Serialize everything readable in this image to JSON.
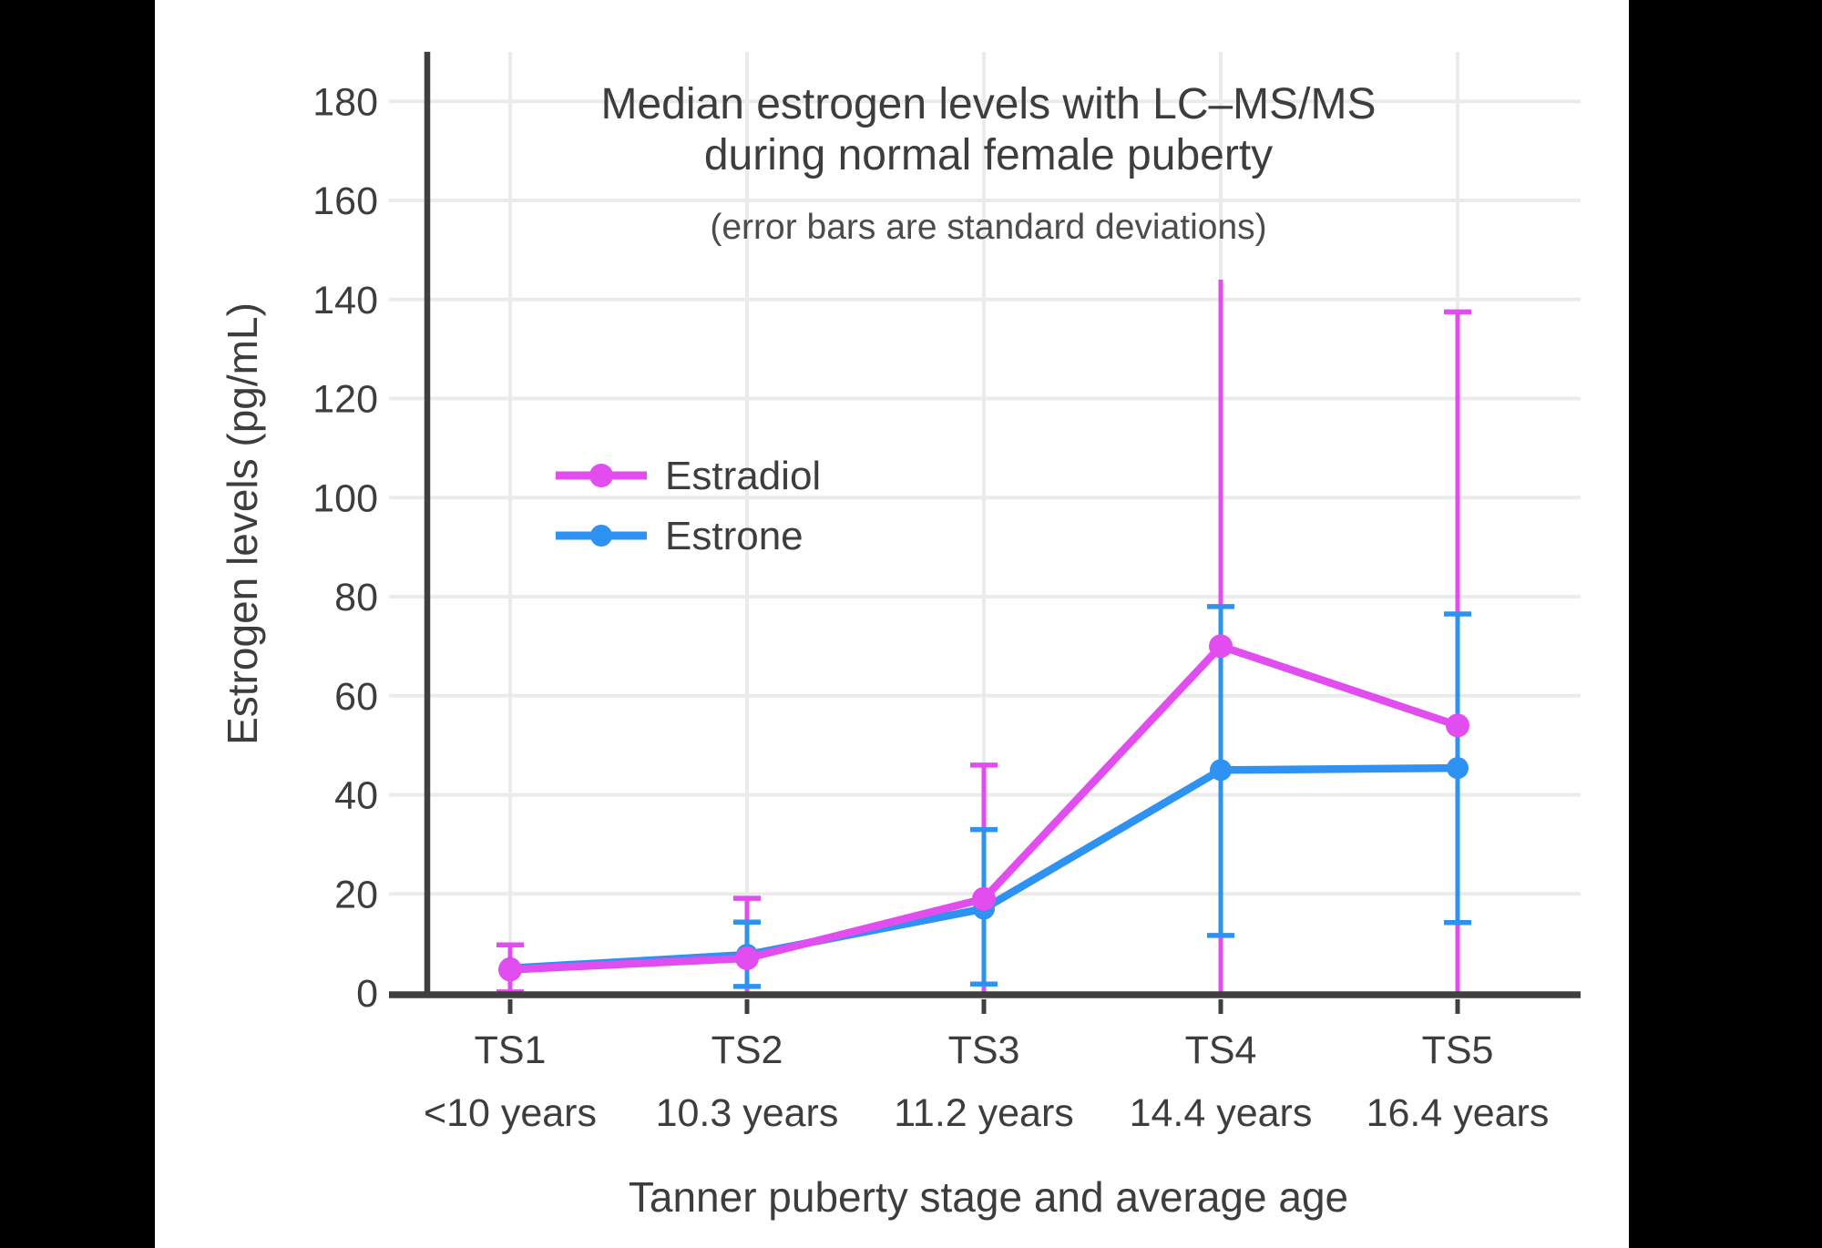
{
  "colors": {
    "page_background": "#000000",
    "panel_background": "#ffffff",
    "grid": "#ebebeb",
    "axis": "#3f3f3f",
    "text": "#3d3d3d",
    "subtitle_text": "#4c4c4c",
    "estradiol": "#e24df0",
    "estrone": "#2d92f2"
  },
  "chart_data": {
    "type": "line",
    "title_line1": "Median estrogen levels with LC–MS/MS",
    "title_line2": "during normal female puberty",
    "subtitle": "(error bars are standard deviations)",
    "xlabel": "Tanner puberty stage and average age",
    "ylabel": "Estrogen levels (pg/mL)",
    "ylim": [
      0,
      190
    ],
    "yticks": [
      0,
      20,
      40,
      60,
      80,
      100,
      120,
      140,
      160,
      180
    ],
    "grid": true,
    "legend_position": "inside-upper-left",
    "categories": [
      {
        "stage": "TS1",
        "age": "<10 years"
      },
      {
        "stage": "TS2",
        "age": "10.3 years"
      },
      {
        "stage": "TS3",
        "age": "11.2 years"
      },
      {
        "stage": "TS4",
        "age": "14.4 years"
      },
      {
        "stage": "TS5",
        "age": "16.4 years"
      }
    ],
    "series": [
      {
        "name": "Estradiol",
        "color": "#e24df0",
        "values": [
          4.7,
          7.0,
          19.0,
          70.0,
          54.0
        ],
        "err_high": [
          9.7,
          19.1,
          46.0,
          144.0,
          137.5
        ],
        "err_high_cap": [
          true,
          true,
          true,
          false,
          true
        ],
        "err_low": [
          0.2,
          null,
          null,
          null,
          null
        ],
        "err_low_cap": [
          true,
          false,
          false,
          false,
          false
        ],
        "err_low_to_axis": [
          false,
          true,
          true,
          true,
          true
        ]
      },
      {
        "name": "Estrone",
        "color": "#2d92f2",
        "values": [
          5.0,
          7.7,
          17.0,
          45.0,
          45.4
        ],
        "err_high": [
          null,
          14.3,
          33.0,
          78.0,
          76.5
        ],
        "err_high_cap": [
          false,
          true,
          true,
          true,
          true
        ],
        "err_low": [
          null,
          1.3,
          1.8,
          11.6,
          14.2
        ],
        "err_low_cap": [
          false,
          true,
          true,
          true,
          true
        ],
        "err_low_to_axis": [
          false,
          false,
          false,
          false,
          false
        ]
      }
    ]
  }
}
